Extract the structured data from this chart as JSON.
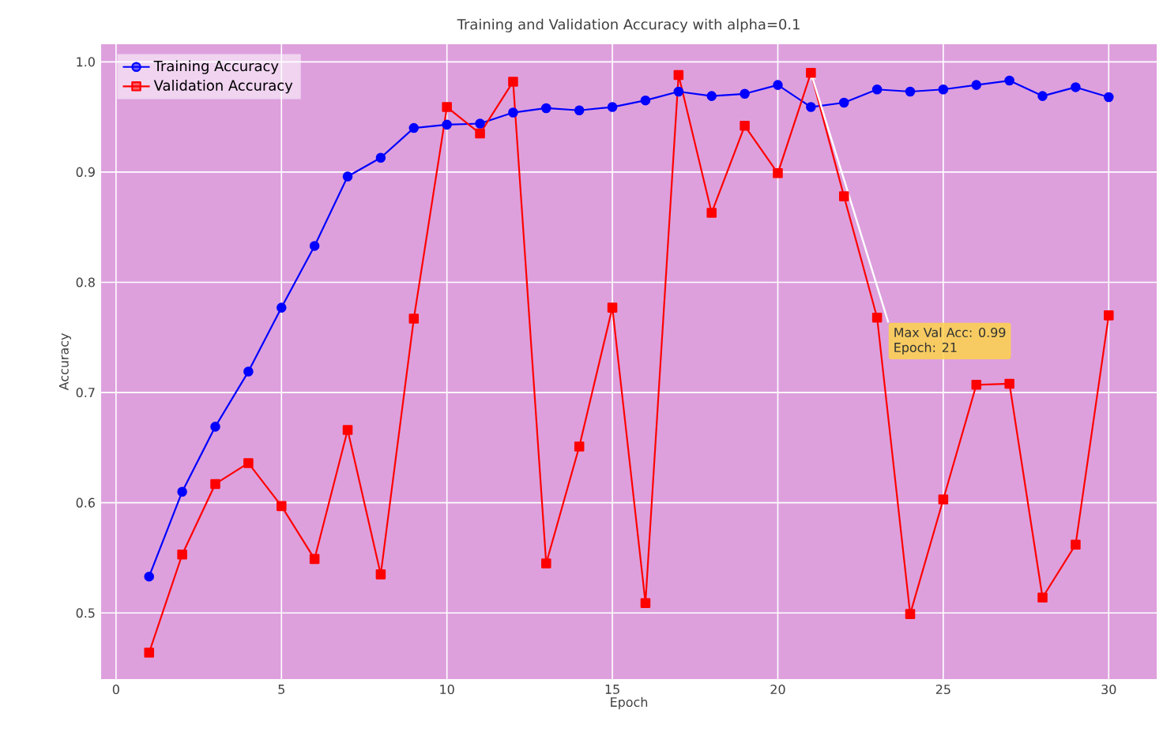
{
  "chart_data": {
    "type": "line",
    "title": "Training and Validation Accuracy with alpha=0.1",
    "xlabel": "Epoch",
    "ylabel": "Accuracy",
    "x": [
      1,
      2,
      3,
      4,
      5,
      6,
      7,
      8,
      9,
      10,
      11,
      12,
      13,
      14,
      15,
      16,
      17,
      18,
      19,
      20,
      21,
      22,
      23,
      24,
      25,
      26,
      27,
      28,
      29,
      30
    ],
    "series": [
      {
        "name": "Training Accuracy",
        "color": "#0000ff",
        "marker": "circle",
        "values": [
          0.533,
          0.61,
          0.669,
          0.719,
          0.777,
          0.833,
          0.896,
          0.913,
          0.94,
          0.943,
          0.944,
          0.954,
          0.958,
          0.956,
          0.959,
          0.965,
          0.973,
          0.969,
          0.971,
          0.979,
          0.959,
          0.963,
          0.975,
          0.973,
          0.975,
          0.979,
          0.983,
          0.969,
          0.977,
          0.968
        ]
      },
      {
        "name": "Validation Accuracy",
        "color": "#ff0000",
        "marker": "square",
        "values": [
          0.464,
          0.553,
          0.617,
          0.636,
          0.597,
          0.549,
          0.666,
          0.535,
          0.767,
          0.959,
          0.935,
          0.982,
          0.545,
          0.651,
          0.777,
          0.509,
          0.988,
          0.863,
          0.942,
          0.899,
          0.99,
          0.878,
          0.768,
          0.499,
          0.603,
          0.707,
          0.708,
          0.514,
          0.562,
          0.77
        ]
      }
    ],
    "xlim": [
      -0.45,
      31.45
    ],
    "ylim": [
      0.44,
      1.016
    ],
    "xticks": [
      0,
      5,
      10,
      15,
      20,
      25,
      30
    ],
    "yticks": [
      0.5,
      0.6,
      0.7,
      0.8,
      0.9,
      {
        "value": 1.0,
        "label": "1.0"
      }
    ],
    "grid": true,
    "legend": "top left",
    "line_style": "solid",
    "annotations": [
      {
        "text": "Max Val Acc: 0.99",
        "x": 21,
        "y": 0.99
      },
      "Epoch: 21"
    ]
  }
}
